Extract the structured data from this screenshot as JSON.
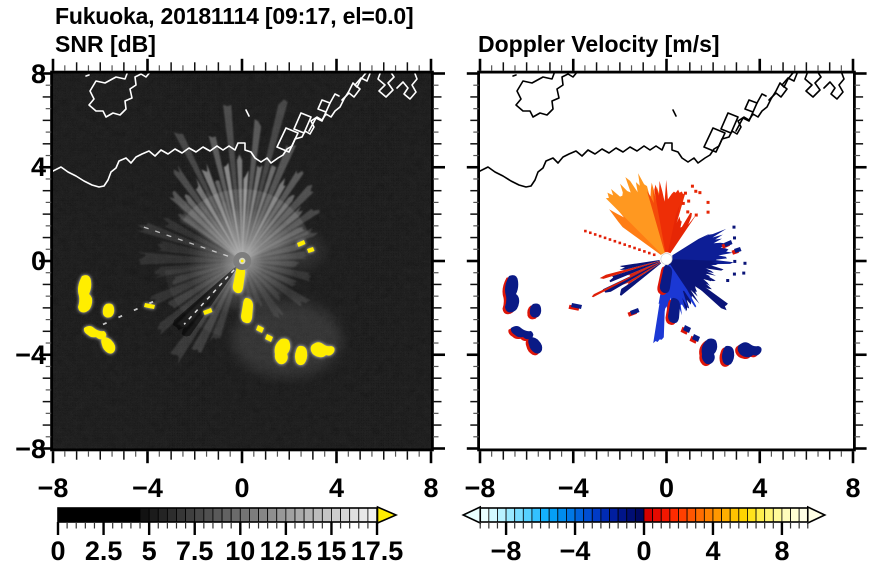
{
  "title": "Fukuoka, 20181114 [09:17, el=0.0]",
  "panels": {
    "snr": {
      "subtitle": "SNR [dB]",
      "x_tick_labels": [
        "−8",
        "−4",
        "0",
        "4",
        "8"
      ],
      "y_tick_labels": [
        "8",
        "4",
        "0",
        "−4",
        "−8"
      ],
      "colorbar": {
        "tick_labels": [
          "0",
          "2.5",
          "5",
          "7.5",
          "10",
          "12.5",
          "15",
          "17.5"
        ],
        "range": [
          0,
          17.5
        ],
        "colormap": "black-to-white grayscale",
        "over_arrow_color": "#ffee00"
      }
    },
    "doppler": {
      "subtitle": "Doppler Velocity [m/s]",
      "x_tick_labels": [
        "−8",
        "−4",
        "0",
        "4",
        "8"
      ],
      "colorbar": {
        "tick_labels": [
          "−8",
          "−4",
          "0",
          "4",
          "8"
        ],
        "range": [
          -9.5,
          9.5
        ],
        "colormap": "diverging: pale-cyan→blue→navy (negative) | red→orange→yellow→cream (positive)"
      }
    }
  },
  "chart_data": [
    {
      "type": "heatmap",
      "title": "SNR [dB]",
      "xlim": [
        -8,
        8
      ],
      "ylim": [
        -8,
        8
      ],
      "xticks": [
        -8,
        -4,
        0,
        4,
        8
      ],
      "yticks": [
        -8,
        -4,
        0,
        4,
        8
      ],
      "grid": false,
      "colorbar": {
        "range": [
          0,
          17.5
        ],
        "ticks": [
          0,
          2.5,
          5,
          7.5,
          10,
          12.5,
          15,
          17.5
        ],
        "colormap": "grayscale",
        "over_color": "yellow"
      },
      "features": [
        "radar located at origin (0,0); bright gray radial beam fan, strongest toward N-NE",
        "yellow high-SNR echo chain arcing from about (0.2,-0.3) to (3.5,-4.4)",
        "yellow echo cluster near (-6.8,-0.7) to (-5.3,-3.6)",
        "white coastline of Hakata Bay across upper part of map (y between 3.5 and 8)",
        "speckled noise over black background; dotted bright ray toward SW and W"
      ]
    },
    {
      "type": "heatmap",
      "title": "Doppler Velocity [m/s]",
      "xlim": [
        -8,
        8
      ],
      "ylim": [
        -8,
        8
      ],
      "xticks": [
        -8,
        -4,
        0,
        4,
        8
      ],
      "yticks": [
        -8,
        -4,
        0,
        4,
        8
      ],
      "grid": false,
      "colorbar": {
        "range": [
          -9.5,
          9.5
        ],
        "ticks": [
          -8,
          -4,
          0,
          4,
          8
        ],
        "colormap": "cyan/blue negative, red/orange/yellow positive"
      },
      "features": [
        "orange/red velocity fan NW-to-NE of radar out to about 3.5 km",
        "dark navy/blue velocity fan E-to-S of radar out to about 2.5 km",
        "alternating red and navy streaks toward WSW",
        "dotted red ray toward WNW",
        "red+navy echo chain from (0.3,-0.5) to (3.5,-4.4); cluster near (-6.8,-1)..(-5.3,-3.6)",
        "black coastline on white background; white dot at radar origin"
      ]
    }
  ]
}
